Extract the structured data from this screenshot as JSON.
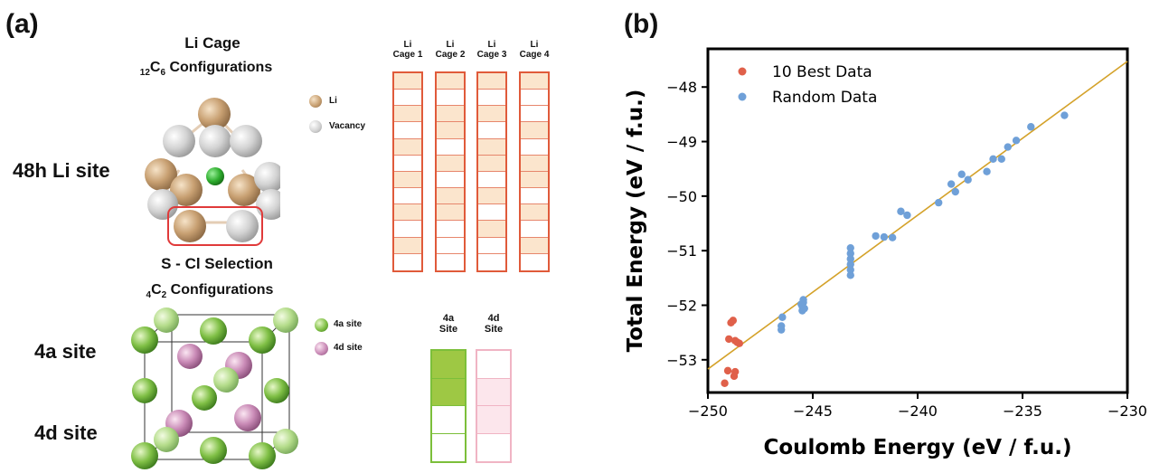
{
  "panel_a": {
    "letter": "(a)",
    "li_cage": {
      "title_line1": "Li Cage",
      "title_sub_pre": "12",
      "title_C": "C",
      "title_sub_post": "6",
      "title_rest": " Configurations",
      "site_label": "48h  Li site",
      "legend": [
        {
          "label": "Li",
          "color": "#c9a27a"
        },
        {
          "label": "Vacancy",
          "color": "#d6d6d6"
        }
      ],
      "cage_headers": [
        {
          "l1": "Li",
          "l2": "Cage 1"
        },
        {
          "l1": "Li",
          "l2": "Cage 2"
        },
        {
          "l1": "Li",
          "l2": "Cage 3"
        },
        {
          "l1": "Li",
          "l2": "Cage 4"
        }
      ],
      "cage_pattern": [
        [
          1,
          0,
          1,
          0,
          1,
          0,
          1,
          0,
          1,
          0,
          1,
          0
        ],
        [
          1,
          0,
          1,
          1,
          0,
          1,
          0,
          1,
          1,
          0,
          0,
          0
        ],
        [
          1,
          0,
          1,
          0,
          1,
          1,
          0,
          1,
          0,
          1,
          0,
          0
        ],
        [
          1,
          0,
          0,
          1,
          0,
          1,
          1,
          0,
          1,
          0,
          1,
          0
        ]
      ],
      "filled_color": "#fbe5cd",
      "empty_color": "#ffffff"
    },
    "s_cl": {
      "title_line1": "S - Cl Selection",
      "title_sub_pre": "4",
      "title_C": "C",
      "title_sub_post": "2",
      "title_rest": " Configurations",
      "label_4a": "4a site",
      "label_4d": "4d site",
      "legend": [
        {
          "label": "4a site",
          "color": "#8cc152"
        },
        {
          "label": "4d site",
          "color": "#d9a6c8"
        }
      ],
      "site_headers": [
        {
          "l1": "4a",
          "l2": "Site"
        },
        {
          "l1": "4d",
          "l2": "Site"
        }
      ],
      "site_4a_pattern": [
        1,
        1,
        0,
        0
      ],
      "site_4d_pattern": [
        0,
        1,
        1,
        0
      ],
      "color_4a_filled": "#9ec844",
      "color_4d_filled": "#fce6ec"
    }
  },
  "panel_b": {
    "letter": "(b)"
  },
  "chart_data": {
    "type": "scatter",
    "xlabel": "Coulomb Energy (eV / f.u.)",
    "ylabel": "Total Energy (eV / f.u.)",
    "xlim": [
      -250,
      -230
    ],
    "ylim": [
      -53.6,
      -47.3
    ],
    "xticks": [
      -250,
      -245,
      -240,
      -235,
      -230
    ],
    "yticks": [
      -53,
      -52,
      -51,
      -50,
      -49,
      -48
    ],
    "xtick_labels": [
      "−250",
      "−245",
      "−240",
      "−235",
      "−230"
    ],
    "ytick_labels": [
      "−53",
      "−52",
      "−51",
      "−50",
      "−49",
      "−48"
    ],
    "legend_position": "top-left",
    "fit_line": {
      "x": [
        -250,
        -230
      ],
      "y": [
        -53.17,
        -47.53
      ],
      "color": "#d4a22a"
    },
    "series": [
      {
        "name": "10 Best Data",
        "color": "#e0604a",
        "points": [
          [
            -249.2,
            -53.43
          ],
          [
            -249.05,
            -53.2
          ],
          [
            -248.75,
            -53.3
          ],
          [
            -248.7,
            -53.22
          ],
          [
            -249.0,
            -52.62
          ],
          [
            -248.7,
            -52.65
          ],
          [
            -248.5,
            -52.7
          ],
          [
            -248.9,
            -52.32
          ],
          [
            -248.8,
            -52.28
          ],
          [
            -248.6,
            -52.68
          ]
        ]
      },
      {
        "name": "Random Data",
        "color": "#6fa0d8",
        "points": [
          [
            -246.5,
            -52.45
          ],
          [
            -246.5,
            -52.38
          ],
          [
            -246.45,
            -52.22
          ],
          [
            -245.5,
            -52.1
          ],
          [
            -245.5,
            -52.02
          ],
          [
            -245.45,
            -51.95
          ],
          [
            -245.45,
            -51.9
          ],
          [
            -245.55,
            -51.98
          ],
          [
            -245.4,
            -52.06
          ],
          [
            -243.2,
            -51.45
          ],
          [
            -243.2,
            -51.35
          ],
          [
            -243.2,
            -51.25
          ],
          [
            -243.2,
            -51.15
          ],
          [
            -243.2,
            -51.05
          ],
          [
            -243.2,
            -50.95
          ],
          [
            -242.0,
            -50.73
          ],
          [
            -241.6,
            -50.75
          ],
          [
            -241.2,
            -50.76
          ],
          [
            -240.8,
            -50.28
          ],
          [
            -240.5,
            -50.35
          ],
          [
            -239.0,
            -50.12
          ],
          [
            -238.4,
            -49.78
          ],
          [
            -238.2,
            -49.92
          ],
          [
            -237.9,
            -49.6
          ],
          [
            -237.6,
            -49.7
          ],
          [
            -236.7,
            -49.55
          ],
          [
            -236.4,
            -49.32
          ],
          [
            -236.0,
            -49.32
          ],
          [
            -235.7,
            -49.1
          ],
          [
            -235.3,
            -48.98
          ],
          [
            -234.6,
            -48.73
          ],
          [
            -233.0,
            -48.52
          ]
        ]
      }
    ]
  }
}
